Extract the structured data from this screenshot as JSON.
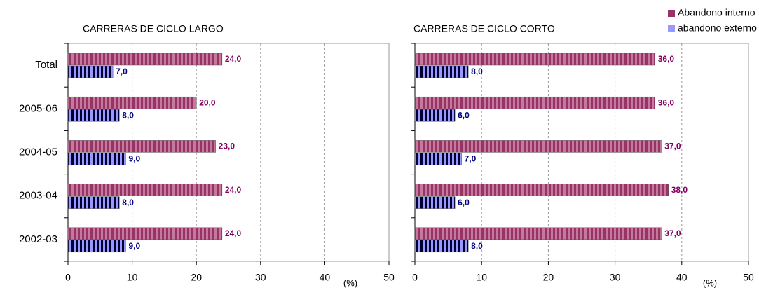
{
  "chart_data": [
    {
      "type": "bar",
      "orientation": "horizontal",
      "title": "CARRERAS DE CICLO LARGO",
      "x_label": "(%)",
      "categories": [
        "Total",
        "2005-06",
        "2004-05",
        "2003-04",
        "2002-03"
      ],
      "series": [
        {
          "name": "Abandono interno",
          "color": "#993366",
          "values": [
            24,
            20,
            23,
            24,
            24
          ],
          "value_labels": [
            "24,0",
            "20,0",
            "23,0",
            "24,0",
            "24,0"
          ]
        },
        {
          "name": "abandono externo",
          "color": "#9999ff",
          "values": [
            7,
            8,
            9,
            8,
            9
          ],
          "value_labels": [
            "7,0",
            "8,0",
            "9,0",
            "8,0",
            "9,0"
          ]
        }
      ],
      "xlim": [
        0,
        50
      ],
      "xticks": [
        0,
        10,
        20,
        30,
        40,
        50
      ],
      "grid": true
    },
    {
      "type": "bar",
      "orientation": "horizontal",
      "title": "CARRERAS DE CICLO CORTO",
      "x_label": "(%)",
      "series": [
        {
          "color": "#993366",
          "values": [
            36,
            36,
            37,
            38,
            37
          ],
          "value_labels": [
            "36,0",
            "36,0",
            "37,0",
            "38,0",
            "37,0"
          ]
        },
        {
          "color": "#9999ff",
          "values": [
            8,
            6,
            7,
            6,
            8
          ],
          "value_labels": [
            "8,0",
            "6,0",
            "7,0",
            "6,0",
            "8,0"
          ]
        }
      ],
      "xlim": [
        0,
        50
      ],
      "xticks": [
        0,
        10,
        20,
        30,
        40,
        50
      ],
      "grid": true,
      "legend": "top-right"
    }
  ]
}
